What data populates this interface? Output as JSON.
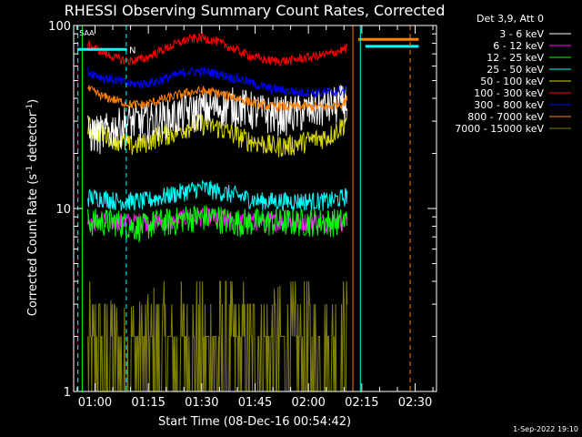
{
  "chart_data": {
    "type": "line",
    "title": "RHESSI Observing Summary Count Rates, Corrected",
    "xlabel": "Start Time (08-Dec-16 00:54:42)",
    "ylabel_parts": [
      "Corrected Count Rate (s",
      "-1",
      " detector",
      "-1",
      ")"
    ],
    "y_scale": "log",
    "ylim": [
      1,
      100
    ],
    "xlim_minutes": [
      -6,
      96
    ],
    "x_ticks": [
      {
        "label": "01:00",
        "minute": 0
      },
      {
        "label": "01:15",
        "minute": 15
      },
      {
        "label": "01:30",
        "minute": 30
      },
      {
        "label": "01:45",
        "minute": 45
      },
      {
        "label": "02:00",
        "minute": 60
      },
      {
        "label": "02:15",
        "minute": 75
      },
      {
        "label": "02:30",
        "minute": 90
      }
    ],
    "y_ticks": [
      {
        "label": "1",
        "value": 1
      },
      {
        "label": "10",
        "value": 10
      },
      {
        "label": "100",
        "value": 100
      }
    ],
    "legend_header": "Det 3,9, Att 0",
    "legend_position": "outside-right",
    "series": [
      {
        "name": "3 - 6 keV",
        "color": "#ffffff",
        "x": [
          -2,
          2,
          6,
          10,
          14,
          18,
          22,
          26,
          30,
          34,
          38,
          42,
          46,
          50,
          54,
          58,
          62,
          66,
          70,
          71
        ],
        "values": [
          26,
          26,
          28,
          30,
          30,
          31,
          32,
          34,
          35,
          36,
          37,
          36,
          34,
          33,
          33,
          34,
          35,
          37,
          38,
          40
        ]
      },
      {
        "name": "6 - 12 keV",
        "color": "#ff00ff",
        "x": [
          -2,
          2,
          6,
          10,
          14,
          18,
          22,
          26,
          30,
          34,
          38,
          42,
          46,
          50,
          54,
          58,
          62,
          66,
          70,
          71
        ],
        "values": [
          8.5,
          8.5,
          8.5,
          8.5,
          8.5,
          8.5,
          8.5,
          9,
          9,
          9,
          8.5,
          8.5,
          8.5,
          8.5,
          8.5,
          8.5,
          8.5,
          8.5,
          8.5,
          9
        ]
      },
      {
        "name": "12 - 25 keV",
        "color": "#00ff00",
        "x": [
          -2,
          2,
          6,
          10,
          14,
          18,
          22,
          26,
          30,
          34,
          38,
          42,
          46,
          50,
          54,
          58,
          62,
          66,
          70,
          71
        ],
        "values": [
          8.5,
          8.5,
          8.5,
          8,
          8,
          8.5,
          8.5,
          9,
          9,
          9,
          8.5,
          8.5,
          8.5,
          8.5,
          8.5,
          8.5,
          8.5,
          8.5,
          8.5,
          9
        ]
      },
      {
        "name": "25 - 50 keV",
        "color": "#00ffff",
        "x": [
          -2,
          2,
          6,
          10,
          14,
          18,
          22,
          26,
          30,
          34,
          38,
          42,
          46,
          50,
          54,
          58,
          62,
          66,
          70,
          71
        ],
        "values": [
          11.5,
          11.5,
          11,
          11,
          11,
          11.5,
          12,
          12.5,
          13,
          12.5,
          12,
          11.5,
          11,
          11,
          11,
          11,
          11,
          11,
          11.5,
          12
        ]
      },
      {
        "name": "50 - 100 keV",
        "color": "#d7d700",
        "x": [
          -2,
          2,
          6,
          10,
          14,
          18,
          22,
          26,
          30,
          34,
          38,
          42,
          46,
          50,
          54,
          58,
          62,
          66,
          70,
          71
        ],
        "values": [
          28,
          26,
          24,
          22,
          23,
          25,
          26,
          28,
          29,
          28,
          26,
          24,
          23,
          22,
          22,
          23,
          24,
          25,
          29,
          33
        ]
      },
      {
        "name": "100 - 300 keV",
        "color": "#ff0000",
        "x": [
          -2,
          2,
          6,
          10,
          14,
          18,
          22,
          26,
          30,
          34,
          38,
          42,
          46,
          50,
          54,
          58,
          62,
          66,
          70,
          71
        ],
        "values": [
          78,
          72,
          66,
          64,
          66,
          72,
          78,
          84,
          86,
          82,
          76,
          70,
          66,
          64,
          64,
          66,
          68,
          70,
          74,
          76
        ]
      },
      {
        "name": "300 - 800 keV",
        "color": "#0000ff",
        "x": [
          -2,
          2,
          6,
          10,
          14,
          18,
          22,
          26,
          30,
          34,
          38,
          42,
          46,
          50,
          54,
          58,
          62,
          66,
          70,
          71
        ],
        "values": [
          56,
          52,
          50,
          48,
          48,
          50,
          53,
          56,
          56,
          55,
          52,
          50,
          47,
          45,
          44,
          43,
          43,
          43,
          44,
          45
        ]
      },
      {
        "name": "800 - 7000 keV",
        "color": "#ff7f00",
        "x": [
          -2,
          2,
          6,
          10,
          14,
          18,
          22,
          26,
          30,
          34,
          38,
          42,
          46,
          50,
          54,
          58,
          62,
          66,
          70,
          71,
          74,
          91
        ],
        "values": [
          45,
          41,
          39,
          37,
          37,
          39,
          41,
          43,
          44,
          43,
          41,
          39,
          37,
          36,
          36,
          36,
          36,
          36,
          38,
          40,
          84,
          84
        ]
      },
      {
        "name": "7000 - 15000 keV",
        "color": "#808000",
        "x": [
          -2,
          2,
          6,
          10,
          14,
          18,
          22,
          26,
          30,
          34,
          38,
          42,
          46,
          50,
          54,
          58,
          62,
          66,
          70,
          71
        ],
        "values": [
          2.5,
          2,
          1.6,
          1.6,
          1.8,
          2.2,
          2.6,
          3,
          3,
          2.8,
          2.4,
          2.2,
          2,
          2,
          2.2,
          2.5,
          2.8,
          2.8,
          2.7,
          2.6
        ]
      }
    ],
    "markers": [
      {
        "label": "N",
        "color": "#00ffff"
      },
      {
        "label": "SAA",
        "color": "#ff7f00"
      }
    ]
  },
  "footer_stamp": "1-Sep-2022 19:10"
}
